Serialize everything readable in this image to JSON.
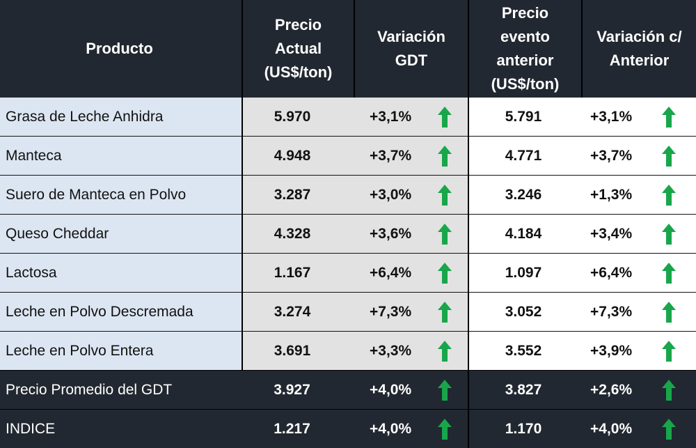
{
  "headers": {
    "product": "Producto",
    "current_price": [
      "Precio",
      "Actual",
      "(US$/ton)"
    ],
    "gdt_change": [
      "Variación",
      "GDT"
    ],
    "previous_price": [
      "Precio",
      "evento",
      "anterior",
      "(US$/ton)"
    ],
    "previous_change": [
      "Variación c/",
      "Anterior"
    ]
  },
  "rows": [
    {
      "product": "Grasa de Leche Anhidra",
      "current_price": "5.970",
      "gdt_change": "+3,1%",
      "previous_price": "5.791",
      "previous_change": "+3,1%"
    },
    {
      "product": "Manteca",
      "current_price": "4.948",
      "gdt_change": "+3,7%",
      "previous_price": "4.771",
      "previous_change": "+3,7%"
    },
    {
      "product": "Suero de Manteca en Polvo",
      "current_price": "3.287",
      "gdt_change": "+3,0%",
      "previous_price": "3.246",
      "previous_change": "+1,3%"
    },
    {
      "product": "Queso Cheddar",
      "current_price": "4.328",
      "gdt_change": "+3,6%",
      "previous_price": "4.184",
      "previous_change": "+3,4%"
    },
    {
      "product": "Lactosa",
      "current_price": "1.167",
      "gdt_change": "+6,4%",
      "previous_price": "1.097",
      "previous_change": "+6,4%"
    },
    {
      "product": "Leche en Polvo Descremada",
      "current_price": "3.274",
      "gdt_change": "+7,3%",
      "previous_price": "3.052",
      "previous_change": "+7,3%"
    },
    {
      "product": "Leche en Polvo Entera",
      "current_price": "3.691",
      "gdt_change": "+3,3%",
      "previous_price": "3.552",
      "previous_change": "+3,9%"
    }
  ],
  "summary_rows": [
    {
      "product": "Precio Promedio del GDT",
      "current_price": "3.927",
      "gdt_change": "+4,0%",
      "previous_price": "3.827",
      "previous_change": "+2,6%"
    },
    {
      "product": "INDICE",
      "current_price": "1.217",
      "gdt_change": "+4,0%",
      "previous_price": "1.170",
      "previous_change": "+4,0%"
    }
  ],
  "icons": {
    "trend": "arrow-up-icon"
  },
  "colors": {
    "header_bg": "#222831",
    "product_col_bg": "#dce6f2",
    "current_cols_bg": "#e2e2e2",
    "arrow_up": "#18a64a"
  }
}
